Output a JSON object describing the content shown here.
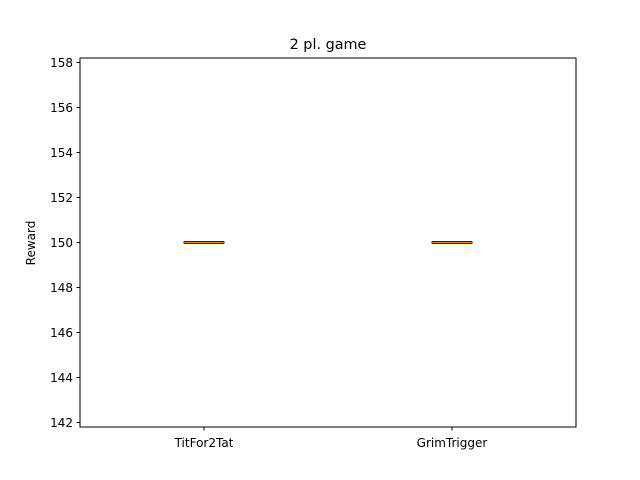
{
  "chart_data": {
    "type": "box",
    "title": "2 pl. game",
    "xlabel": "",
    "ylabel": "Reward",
    "categories": [
      "TitFor2Tat",
      "GrimTrigger"
    ],
    "series": [
      {
        "category": "TitFor2Tat",
        "min": 150,
        "q1": 150,
        "median": 150,
        "q3": 150,
        "max": 150
      },
      {
        "category": "GrimTrigger",
        "min": 150,
        "q1": 150,
        "median": 150,
        "q3": 150,
        "max": 150
      }
    ],
    "ylim": [
      141.8,
      158.2
    ],
    "yticks": [
      142,
      144,
      146,
      148,
      150,
      152,
      154,
      156,
      158
    ],
    "grid": false,
    "legend": "none",
    "colors": {
      "box": "#000000",
      "median": "#ff7f0e"
    }
  }
}
